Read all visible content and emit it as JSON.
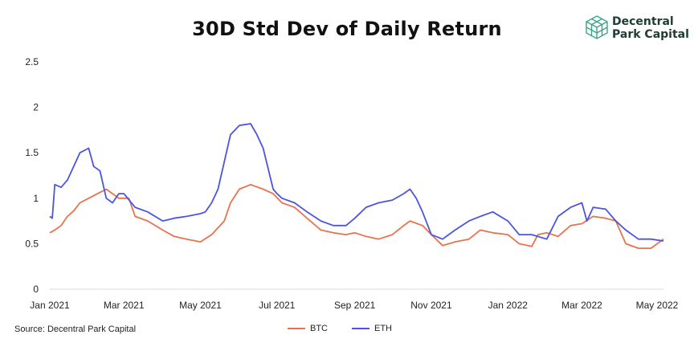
{
  "header": {
    "title": "30D Std Dev of Daily Return",
    "logo_line1": "Decentral",
    "logo_line2": "Park Capital"
  },
  "footer": {
    "source": "Source: Decentral Park Capital"
  },
  "colors": {
    "btc": "#e8734f",
    "eth": "#4a55e0",
    "axis": "#d9d9d9",
    "logo": "#3aa387"
  },
  "chart_data": {
    "type": "line",
    "title": "30D Std Dev of Daily Return",
    "xlabel": "",
    "ylabel": "",
    "ylim": [
      0,
      2.5
    ],
    "yticks": [
      0,
      0.5,
      1,
      1.5,
      2,
      2.5
    ],
    "ytick_labels": [
      "0",
      "0.5",
      "1",
      "1.5",
      "2",
      "2.5"
    ],
    "xticks": [
      "2021-01-01",
      "2021-03-01",
      "2021-05-01",
      "2021-07-01",
      "2021-09-01",
      "2021-11-01",
      "2022-01-01",
      "2022-03-01",
      "2022-05-01"
    ],
    "xtick_labels": [
      "Jan 2021",
      "Mar 2021",
      "May 2021",
      "Jul 2021",
      "Sep 2021",
      "Nov 2021",
      "Jan 2022",
      "Mar 2022",
      "May 2022"
    ],
    "xlim": [
      "2021-01-01",
      "2022-05-05"
    ],
    "grid": false,
    "legend": "bottom-center",
    "series": [
      {
        "name": "BTC",
        "x": [
          "2021-01-01",
          "2021-01-05",
          "2021-01-10",
          "2021-01-15",
          "2021-01-20",
          "2021-01-25",
          "2021-02-01",
          "2021-02-08",
          "2021-02-15",
          "2021-02-20",
          "2021-02-25",
          "2021-03-01",
          "2021-03-05",
          "2021-03-10",
          "2021-03-20",
          "2021-04-01",
          "2021-04-10",
          "2021-04-20",
          "2021-05-01",
          "2021-05-10",
          "2021-05-20",
          "2021-05-25",
          "2021-06-01",
          "2021-06-10",
          "2021-06-20",
          "2021-06-28",
          "2021-07-05",
          "2021-07-15",
          "2021-07-25",
          "2021-08-05",
          "2021-08-15",
          "2021-08-25",
          "2021-09-01",
          "2021-09-10",
          "2021-09-20",
          "2021-10-01",
          "2021-10-10",
          "2021-10-15",
          "2021-10-25",
          "2021-11-01",
          "2021-11-10",
          "2021-11-20",
          "2021-12-01",
          "2021-12-10",
          "2021-12-20",
          "2022-01-01",
          "2022-01-10",
          "2022-01-20",
          "2022-01-25",
          "2022-02-01",
          "2022-02-10",
          "2022-02-20",
          "2022-03-01",
          "2022-03-10",
          "2022-03-20",
          "2022-03-28",
          "2022-04-05",
          "2022-04-15",
          "2022-04-25",
          "2022-05-05"
        ],
        "values": [
          0.62,
          0.65,
          0.7,
          0.8,
          0.86,
          0.95,
          1.0,
          1.05,
          1.1,
          1.05,
          1.0,
          1.0,
          1.0,
          0.8,
          0.75,
          0.65,
          0.58,
          0.55,
          0.52,
          0.6,
          0.75,
          0.95,
          1.1,
          1.15,
          1.1,
          1.05,
          0.95,
          0.9,
          0.78,
          0.65,
          0.62,
          0.6,
          0.62,
          0.58,
          0.55,
          0.6,
          0.7,
          0.75,
          0.7,
          0.6,
          0.48,
          0.52,
          0.55,
          0.65,
          0.62,
          0.6,
          0.5,
          0.47,
          0.6,
          0.62,
          0.58,
          0.7,
          0.72,
          0.8,
          0.78,
          0.75,
          0.5,
          0.45,
          0.45,
          0.55
        ]
      },
      {
        "name": "ETH",
        "x": [
          "2021-01-01",
          "2021-01-03",
          "2021-01-05",
          "2021-01-10",
          "2021-01-15",
          "2021-01-20",
          "2021-01-25",
          "2021-02-01",
          "2021-02-05",
          "2021-02-10",
          "2021-02-15",
          "2021-02-20",
          "2021-02-25",
          "2021-03-01",
          "2021-03-10",
          "2021-03-20",
          "2021-04-01",
          "2021-04-10",
          "2021-04-20",
          "2021-05-01",
          "2021-05-05",
          "2021-05-10",
          "2021-05-15",
          "2021-05-20",
          "2021-05-25",
          "2021-06-01",
          "2021-06-10",
          "2021-06-15",
          "2021-06-20",
          "2021-06-28",
          "2021-07-01",
          "2021-07-05",
          "2021-07-15",
          "2021-07-25",
          "2021-08-05",
          "2021-08-15",
          "2021-08-25",
          "2021-09-01",
          "2021-09-10",
          "2021-09-20",
          "2021-10-01",
          "2021-10-10",
          "2021-10-15",
          "2021-10-20",
          "2021-10-25",
          "2021-11-01",
          "2021-11-10",
          "2021-11-20",
          "2021-12-01",
          "2021-12-10",
          "2021-12-20",
          "2022-01-01",
          "2022-01-10",
          "2022-01-20",
          "2022-02-01",
          "2022-02-10",
          "2022-02-20",
          "2022-03-01",
          "2022-03-05",
          "2022-03-10",
          "2022-03-20",
          "2022-03-28",
          "2022-04-05",
          "2022-04-15",
          "2022-04-25",
          "2022-05-05"
        ],
        "values": [
          0.8,
          0.78,
          1.15,
          1.12,
          1.2,
          1.35,
          1.5,
          1.55,
          1.35,
          1.3,
          1.0,
          0.95,
          1.05,
          1.05,
          0.9,
          0.85,
          0.75,
          0.78,
          0.8,
          0.83,
          0.85,
          0.95,
          1.1,
          1.4,
          1.7,
          1.8,
          1.82,
          1.7,
          1.55,
          1.1,
          1.05,
          1.0,
          0.95,
          0.85,
          0.75,
          0.7,
          0.7,
          0.78,
          0.9,
          0.95,
          0.98,
          1.05,
          1.1,
          1.0,
          0.85,
          0.6,
          0.55,
          0.65,
          0.75,
          0.8,
          0.85,
          0.75,
          0.6,
          0.6,
          0.55,
          0.8,
          0.9,
          0.95,
          0.75,
          0.9,
          0.88,
          0.75,
          0.65,
          0.55,
          0.55,
          0.53
        ]
      }
    ]
  }
}
